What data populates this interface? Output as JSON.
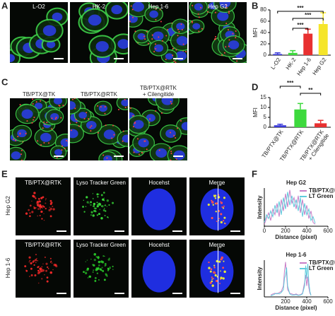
{
  "panel_letters": [
    "A",
    "B",
    "C",
    "D",
    "E",
    "F"
  ],
  "panel_a": {
    "labels": [
      "L-O2",
      "HK-2",
      "Hep 1-6",
      "Hep G2"
    ]
  },
  "panel_c": {
    "labels": [
      [
        "TB/PTX@TK"
      ],
      [
        "TB/PTX@RTK"
      ],
      [
        "TB/PTX@RTK",
        "+ Cilengitide"
      ]
    ]
  },
  "panel_e": {
    "columns": [
      "TB/PTX@RTK",
      "Lyso Tracker Green",
      "Hocehst",
      "Merge"
    ],
    "rows": [
      "Hep G2",
      "Hep 1-6"
    ]
  },
  "chart_data": [
    {
      "type": "bar",
      "y_label": "MFI",
      "categories": [
        [
          "L-O2"
        ],
        [
          "HK-2"
        ],
        [
          "Hep 1-6"
        ],
        [
          "Hep G2"
        ]
      ],
      "values": [
        2,
        4,
        38,
        55
      ],
      "errors": [
        2,
        4,
        8,
        20
      ],
      "colors": [
        "#3b3bd9",
        "#3dd93d",
        "#e83030",
        "#f5e52a"
      ],
      "ylim": [
        0,
        80
      ],
      "yticks": [
        0,
        20,
        40,
        60,
        80
      ],
      "annotations": [
        "***",
        "***",
        "***"
      ]
    },
    {
      "type": "bar",
      "y_label": "MFI",
      "categories": [
        [
          "TB/PTX@TK"
        ],
        [
          "TB/PTX@RTK"
        ],
        [
          "TB/PTX@RTK",
          "+ Cilengitide"
        ]
      ],
      "values": [
        1,
        9,
        2
      ],
      "errors": [
        0.5,
        3,
        1.5
      ],
      "colors": [
        "#3b3bd9",
        "#3dd93d",
        "#e83030"
      ],
      "ylim": [
        0,
        15
      ],
      "yticks": [
        0,
        5,
        10,
        15
      ],
      "annotations": [
        "***",
        "**"
      ]
    },
    {
      "type": "line",
      "title": "Hep G2",
      "x_label": "Distance (pixel)",
      "y_label": "Intensity",
      "xlim": [
        0,
        600
      ],
      "xticks": [
        0,
        200,
        400,
        600
      ],
      "ylim": [
        0,
        100
      ],
      "legend": "top-right",
      "x": [
        0,
        20,
        40,
        60,
        80,
        100,
        120,
        140,
        160,
        180,
        200,
        220,
        240,
        260,
        280,
        300,
        320,
        340,
        360,
        380,
        400,
        420,
        440,
        460,
        480
      ],
      "series": [
        {
          "name": "TB/PTX@RTK",
          "color": "#c77ec7",
          "values": [
            5,
            20,
            35,
            15,
            45,
            30,
            60,
            25,
            70,
            40,
            85,
            50,
            95,
            60,
            75,
            45,
            80,
            35,
            70,
            30,
            55,
            20,
            40,
            10,
            5
          ]
        },
        {
          "name": "LT Green",
          "color": "#5fcbdc",
          "values": [
            10,
            30,
            20,
            40,
            25,
            55,
            35,
            65,
            30,
            75,
            45,
            90,
            55,
            80,
            50,
            70,
            40,
            75,
            25,
            60,
            30,
            45,
            15,
            25,
            8
          ]
        }
      ]
    },
    {
      "type": "line",
      "title": "Hep 1-6",
      "x_label": "Distance (pixel)",
      "y_label": "Intensity",
      "xlim": [
        0,
        600
      ],
      "xticks": [
        200,
        400,
        600
      ],
      "ylim": [
        0,
        100
      ],
      "legend": "top-right",
      "x": [
        60,
        80,
        100,
        120,
        140,
        160,
        180,
        190,
        200,
        210,
        220,
        240,
        260,
        280,
        300,
        320,
        340,
        360,
        380,
        390,
        400,
        410,
        420,
        430,
        440
      ],
      "series": [
        {
          "name": "TB/PTX@RTK",
          "color": "#c77ec7",
          "values": [
            5,
            8,
            10,
            8,
            12,
            15,
            30,
            70,
            95,
            60,
            20,
            10,
            8,
            6,
            8,
            5,
            6,
            10,
            40,
            60,
            30,
            55,
            25,
            10,
            5
          ]
        },
        {
          "name": "LT Green",
          "color": "#5fcbdc",
          "values": [
            3,
            5,
            8,
            10,
            8,
            12,
            20,
            50,
            60,
            80,
            30,
            8,
            5,
            5,
            6,
            4,
            5,
            8,
            30,
            85,
            50,
            90,
            40,
            15,
            4
          ]
        }
      ]
    }
  ]
}
